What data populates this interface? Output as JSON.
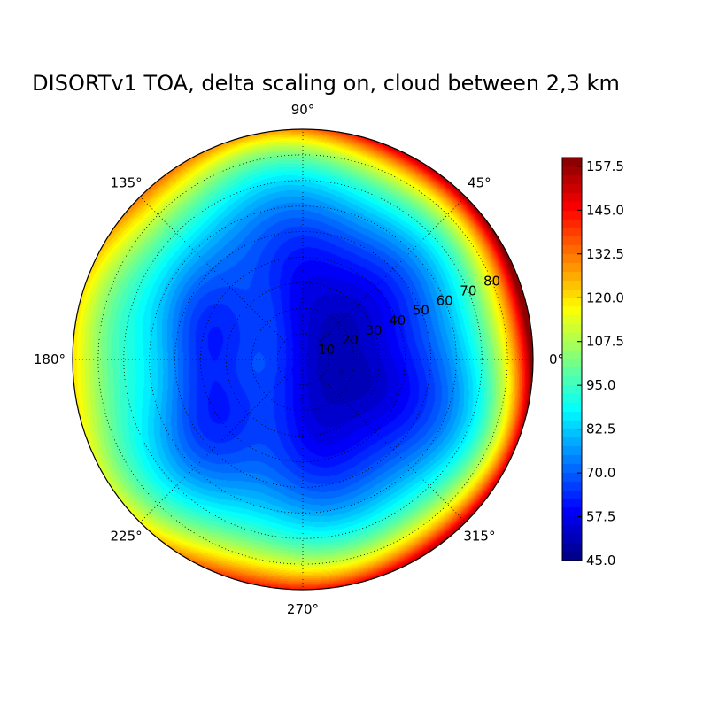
{
  "chart_data": {
    "type": "heatmap",
    "projection": "polar",
    "title": "DISORTv1 TOA, delta scaling on, cloud between 2,3 km",
    "angle_ticks": [
      "0°",
      "45°",
      "90°",
      "135°",
      "180°",
      "225°",
      "270°",
      "315°"
    ],
    "angle_values_deg": [
      0,
      45,
      90,
      135,
      180,
      225,
      270,
      315
    ],
    "radial_ticks": [
      "10",
      "20",
      "30",
      "40",
      "50",
      "60",
      "70",
      "80"
    ],
    "radial_values": [
      10,
      20,
      30,
      40,
      50,
      60,
      70,
      80
    ],
    "radial_range": [
      0,
      90
    ],
    "grid": true,
    "grid_style": "dotted",
    "colormap": "jet",
    "color_range": [
      45.0,
      160.0
    ],
    "colorbar": {
      "ticks": [
        "45.0",
        "57.5",
        "70.0",
        "82.5",
        "95.0",
        "107.5",
        "120.0",
        "132.5",
        "145.0",
        "157.5"
      ],
      "tick_values": [
        45.0,
        57.5,
        70.0,
        82.5,
        95.0,
        107.5,
        120.0,
        132.5,
        145.0,
        157.5
      ],
      "placement": "right"
    },
    "field_summary": {
      "minimum_value": 45,
      "minimum_location_deg": [
        0,
        25
      ],
      "secondary_minimum_value": 60,
      "secondary_minimum_location_deg": [
        180,
        15
      ],
      "maximum_value": 158,
      "maximum_location_deg": [
        0,
        85
      ],
      "rim_value": 118
    }
  }
}
